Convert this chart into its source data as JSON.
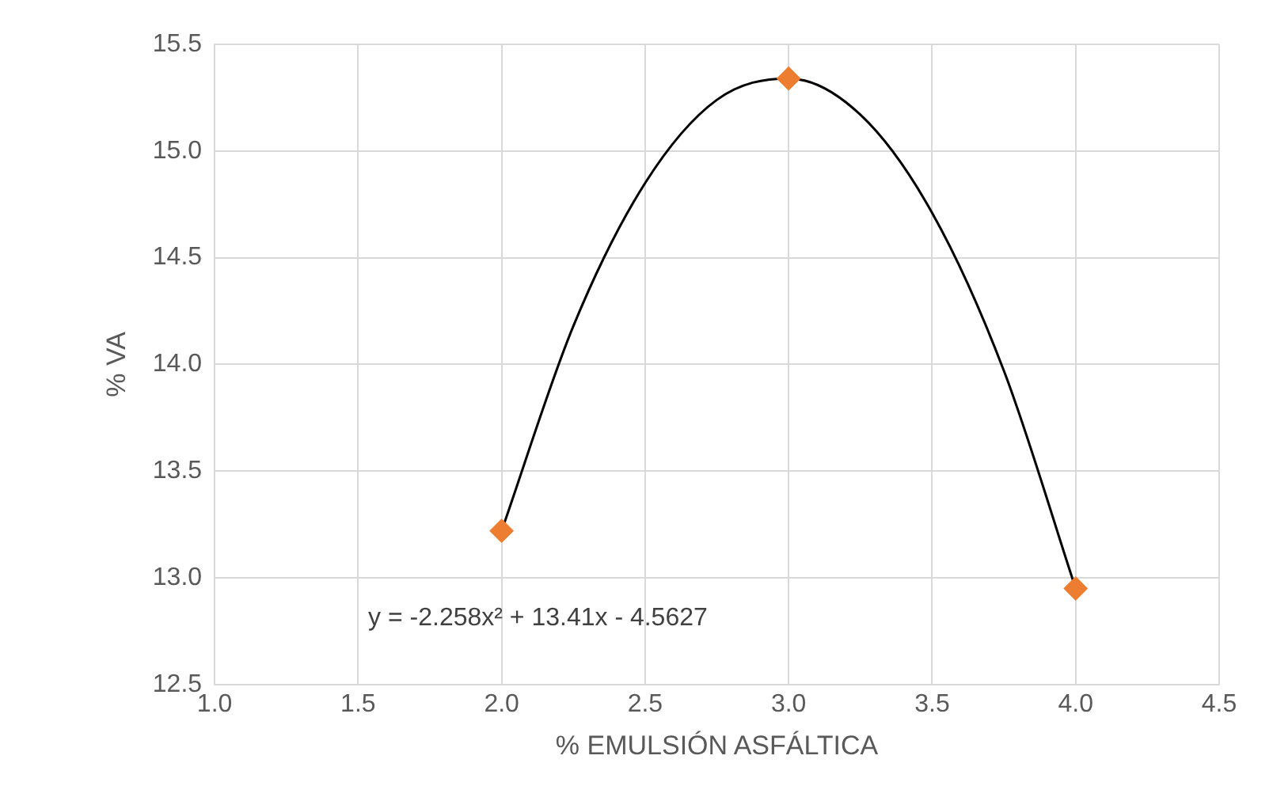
{
  "chart_data": {
    "type": "scatter",
    "xlabel": "% EMULSIÓN ASFÁLTICA",
    "ylabel": "% VA",
    "series": [
      {
        "color": "#ed7d31",
        "marker": "diamond",
        "x": [
          2,
          3,
          4
        ],
        "values": [
          13.22,
          15.34,
          12.95
        ]
      },
      {
        "type": "line",
        "color": "#000000",
        "marker": "none",
        "x": [
          2,
          2.25,
          2.5,
          2.75,
          3,
          3.25,
          3.5,
          3.75,
          4
        ],
        "values": [
          13.22,
          14.18,
          14.85,
          15.24,
          15.34,
          15.17,
          14.71,
          13.97,
          12.95
        ]
      }
    ],
    "xlim": [
      1,
      4.5
    ],
    "xticks": [
      {
        "value": 1,
        "label": "1.0"
      },
      {
        "value": 1.5,
        "label": "1.5"
      },
      {
        "value": 2,
        "label": "2.0"
      },
      {
        "value": 2.5,
        "label": "2.5"
      },
      {
        "value": 3,
        "label": "3.0"
      },
      {
        "value": 3.5,
        "label": "3.5"
      },
      {
        "value": 4,
        "label": "4.0"
      },
      {
        "value": 4.5,
        "label": "4.5"
      }
    ],
    "ylim": [
      12.5,
      15.5
    ],
    "yticks": [
      {
        "value": 12.5,
        "label": "12.5"
      },
      {
        "value": 13,
        "label": "13.0"
      },
      {
        "value": 13.5,
        "label": "13.5"
      },
      {
        "value": 14,
        "label": "14.0"
      },
      {
        "value": 14.5,
        "label": "14.5"
      },
      {
        "value": 15,
        "label": "15.0"
      },
      {
        "value": 15.5,
        "label": "15.5"
      }
    ],
    "grid": true,
    "legend": false,
    "annotations": [
      "y = -2.258x² + 13.41x - 4.5627"
    ]
  }
}
